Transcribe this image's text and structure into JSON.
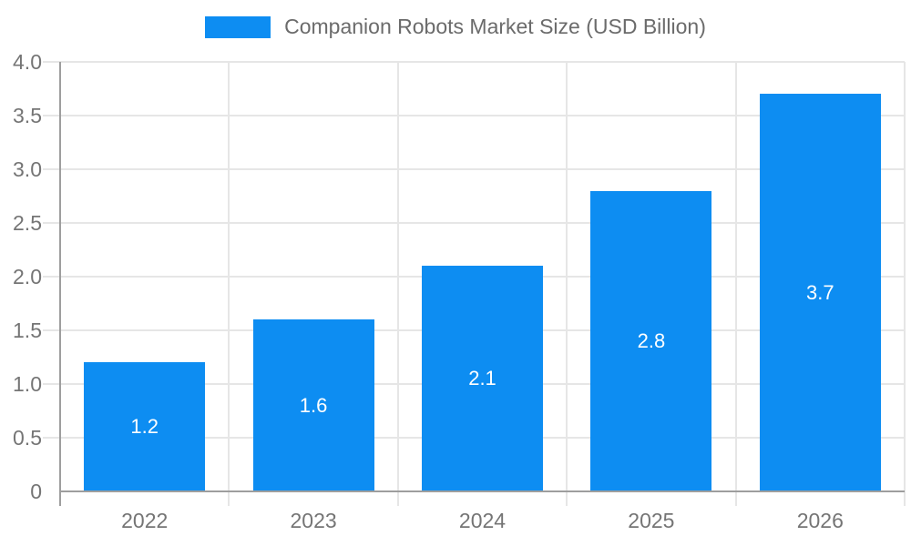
{
  "chart_data": {
    "type": "bar",
    "title": "Companion Robots Market Size (USD Billion)",
    "legend": {
      "position": "top",
      "label": "Companion Robots Market Size (USD Billion)"
    },
    "categories": [
      "2022",
      "2023",
      "2024",
      "2025",
      "2026"
    ],
    "values": [
      1.2,
      1.6,
      2.1,
      2.8,
      3.7
    ],
    "value_labels": [
      "1.2",
      "1.6",
      "2.1",
      "2.8",
      "3.7"
    ],
    "xlabel": "",
    "ylabel": "",
    "ylim": [
      0,
      4
    ],
    "y_ticks": [
      0,
      0.5,
      1,
      1.5,
      2,
      2.5,
      3,
      3.5,
      4
    ],
    "y_tick_labels": [
      "0",
      "0.5",
      "1.0",
      "1.5",
      "2.0",
      "2.5",
      "3.0",
      "3.5",
      "4.0"
    ],
    "grid": true
  },
  "colors": {
    "bar": "#0d8df2",
    "axis_line": "#9e9e9e",
    "gridline": "#e6e6e6",
    "tick_label": "#757575",
    "legend_label": "#6b6b6b",
    "value_label": "#ffffff",
    "background": "#ffffff"
  }
}
